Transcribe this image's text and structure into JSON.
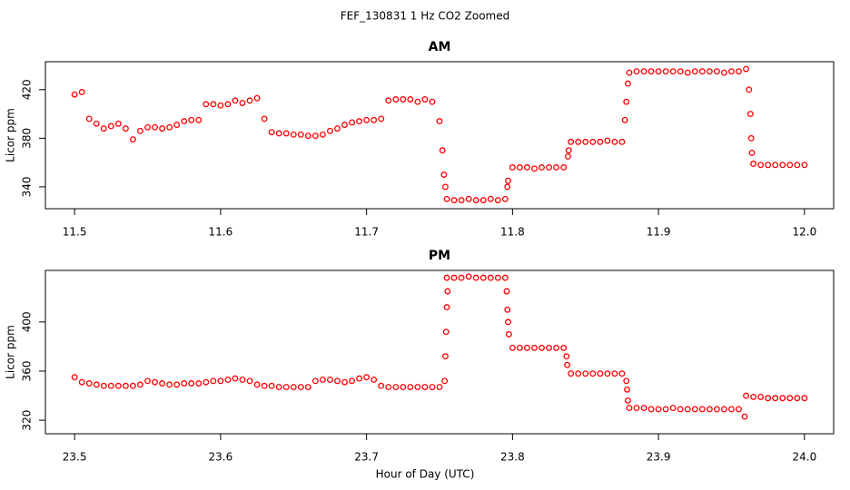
{
  "title": "FEF_130831  1 Hz CO2 Zoomed",
  "xlabel": "Hour of Day (UTC)",
  "chart_data": [
    {
      "type": "scatter",
      "title": "AM",
      "ylabel": "Licor ppm",
      "color": "#ff0000",
      "xlim": [
        11.48,
        12.02
      ],
      "ylim": [
        322,
        443
      ],
      "xticks": [
        11.5,
        11.6,
        11.7,
        11.8,
        11.9,
        {
          "value": 12,
          "label": "12.0"
        }
      ],
      "yticks": [
        340,
        380,
        420
      ],
      "x": [
        11.5,
        11.505,
        11.51,
        11.515,
        11.52,
        11.525,
        11.53,
        11.535,
        11.54,
        11.545,
        11.55,
        11.555,
        11.56,
        11.565,
        11.57,
        11.575,
        11.58,
        11.585,
        11.59,
        11.595,
        11.6,
        11.605,
        11.61,
        11.615,
        11.62,
        11.625,
        11.63,
        11.635,
        11.64,
        11.645,
        11.65,
        11.655,
        11.66,
        11.665,
        11.67,
        11.675,
        11.68,
        11.685,
        11.69,
        11.695,
        11.7,
        11.705,
        11.71,
        11.715,
        11.72,
        11.725,
        11.73,
        11.735,
        11.74,
        11.745,
        11.75,
        11.755,
        11.76,
        11.765,
        11.77,
        11.775,
        11.78,
        11.785,
        11.79,
        11.795,
        11.8,
        11.805,
        11.81,
        11.815,
        11.82,
        11.825,
        11.83,
        11.835,
        11.84,
        11.845,
        11.85,
        11.855,
        11.86,
        11.865,
        11.87,
        11.875,
        11.88,
        11.885,
        11.89,
        11.895,
        11.9,
        11.905,
        11.91,
        11.915,
        11.92,
        11.925,
        11.93,
        11.935,
        11.94,
        11.945,
        11.95,
        11.955,
        11.96,
        11.965,
        11.97,
        11.975,
        11.98,
        11.985,
        11.99,
        11.995,
        12.0,
        11.752,
        11.753,
        11.754,
        11.7965,
        11.797,
        11.838,
        11.8385,
        11.877,
        11.878,
        11.879,
        11.962,
        11.963,
        11.9635,
        11.964
      ],
      "values": [
        416,
        418,
        396,
        392,
        388,
        390,
        392,
        388,
        379,
        386,
        389,
        389,
        388,
        389,
        391,
        394,
        395,
        395,
        408,
        408,
        407,
        408,
        411,
        409,
        411,
        413,
        396,
        385,
        384,
        384,
        383,
        383,
        382,
        382,
        383,
        386,
        388,
        391,
        393,
        394,
        395,
        395,
        396,
        411,
        412,
        412,
        412,
        410,
        412,
        410,
        394,
        330,
        329,
        329,
        330,
        329,
        329,
        330,
        329,
        330,
        356,
        356,
        356,
        355,
        356,
        356,
        356,
        356,
        377,
        377,
        377,
        377,
        377,
        378,
        377,
        377,
        434,
        435,
        435,
        435,
        435,
        435,
        435,
        435,
        434,
        435,
        435,
        435,
        435,
        434,
        435,
        435,
        437,
        359,
        358,
        358,
        358,
        358,
        358,
        358,
        358,
        370,
        350,
        340,
        340,
        345,
        365,
        370,
        395,
        410,
        425,
        420,
        400,
        380,
        368
      ]
    },
    {
      "type": "scatter",
      "title": "PM",
      "ylabel": "Licor ppm",
      "color": "#ff0000",
      "xlim": [
        23.48,
        24.02
      ],
      "ylim": [
        309,
        442
      ],
      "xticks": [
        23.5,
        23.6,
        23.7,
        23.8,
        23.9,
        {
          "value": 24,
          "label": "24.0"
        }
      ],
      "yticks": [
        320,
        360,
        400
      ],
      "x": [
        23.5,
        23.505,
        23.51,
        23.515,
        23.52,
        23.525,
        23.53,
        23.535,
        23.54,
        23.545,
        23.55,
        23.555,
        23.56,
        23.565,
        23.57,
        23.575,
        23.58,
        23.585,
        23.59,
        23.595,
        23.6,
        23.605,
        23.61,
        23.615,
        23.62,
        23.625,
        23.63,
        23.635,
        23.64,
        23.645,
        23.65,
        23.655,
        23.66,
        23.665,
        23.67,
        23.675,
        23.68,
        23.685,
        23.69,
        23.695,
        23.7,
        23.705,
        23.71,
        23.715,
        23.72,
        23.725,
        23.73,
        23.735,
        23.74,
        23.745,
        23.75,
        23.755,
        23.76,
        23.765,
        23.77,
        23.775,
        23.78,
        23.785,
        23.79,
        23.795,
        23.8,
        23.805,
        23.81,
        23.815,
        23.82,
        23.825,
        23.83,
        23.835,
        23.84,
        23.845,
        23.85,
        23.855,
        23.86,
        23.865,
        23.87,
        23.875,
        23.88,
        23.885,
        23.89,
        23.895,
        23.9,
        23.905,
        23.91,
        23.915,
        23.92,
        23.925,
        23.93,
        23.935,
        23.94,
        23.945,
        23.95,
        23.955,
        23.96,
        23.965,
        23.97,
        23.975,
        23.98,
        23.985,
        23.99,
        23.995,
        24.0,
        23.7535,
        23.754,
        23.7545,
        23.755,
        23.7555,
        23.796,
        23.7965,
        23.797,
        23.7975,
        23.837,
        23.8375,
        23.878,
        23.8785,
        23.879,
        23.959
      ],
      "values": [
        355,
        351,
        350,
        349,
        348,
        348,
        348,
        348,
        348,
        349,
        352,
        351,
        350,
        349,
        349,
        350,
        350,
        350,
        351,
        352,
        352,
        353,
        354,
        353,
        352,
        349,
        348,
        348,
        347,
        347,
        347,
        347,
        347,
        352,
        353,
        353,
        352,
        351,
        352,
        354,
        355,
        353,
        348,
        347,
        347,
        347,
        347,
        347,
        347,
        347,
        347,
        436,
        436,
        436,
        437,
        436,
        436,
        436,
        436,
        436,
        379,
        379,
        379,
        379,
        379,
        379,
        379,
        379,
        358,
        358,
        358,
        358,
        358,
        358,
        358,
        358,
        330,
        330,
        330,
        329,
        329,
        329,
        330,
        329,
        329,
        329,
        329,
        329,
        329,
        329,
        329,
        329,
        340,
        339,
        339,
        338,
        338,
        338,
        338,
        338,
        338,
        352,
        372,
        392,
        412,
        425,
        425,
        410,
        400,
        390,
        372,
        365,
        352,
        345,
        336,
        323
      ]
    }
  ]
}
